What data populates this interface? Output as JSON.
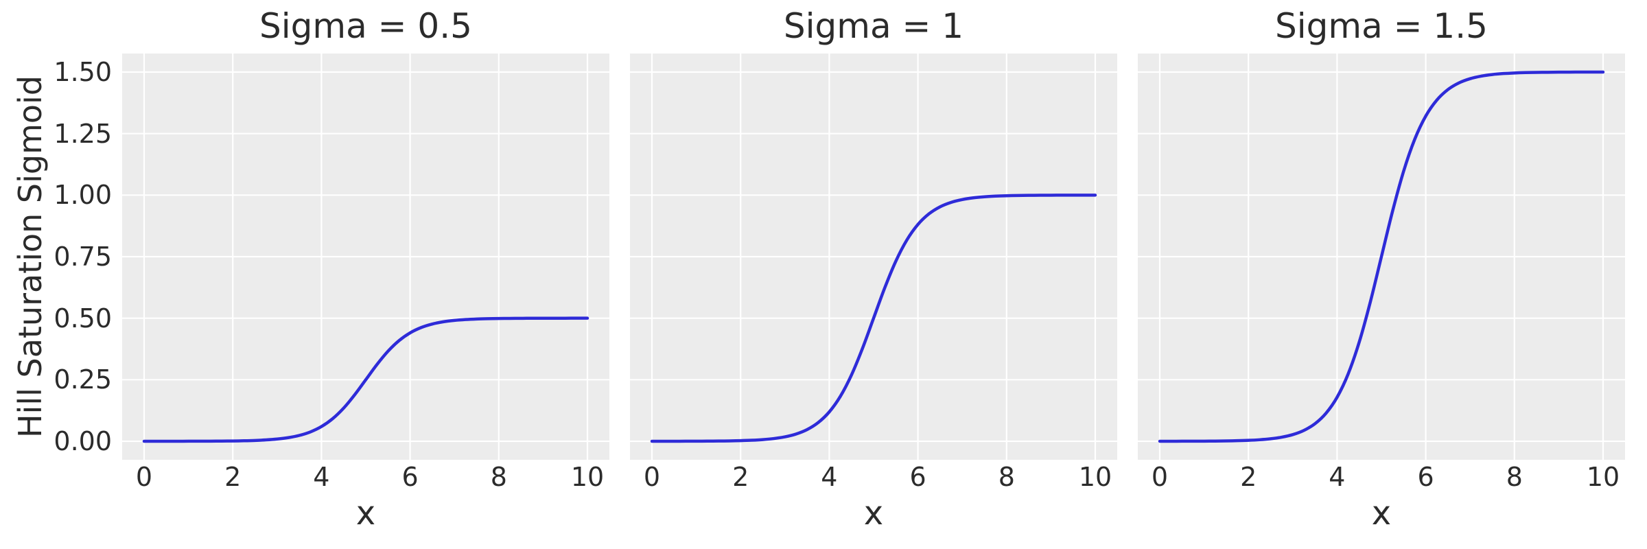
{
  "figure": {
    "background": "#ffffff",
    "axes_background": "#ececec",
    "grid_color": "#ffffff",
    "line_color": "#2e2bd8",
    "text_color": "#2b2b2b"
  },
  "chart_data": {
    "type": "line",
    "layout": "1 row x 3 columns, shared y axis",
    "grid": true,
    "legend": "none",
    "ylabel": "Hill Saturation Sigmoid",
    "xlabel": "x",
    "x_ticks": [
      0,
      2,
      4,
      6,
      8,
      10
    ],
    "y_ticks": [
      "0.00",
      "0.25",
      "0.50",
      "0.75",
      "1.00",
      "1.25",
      "1.50"
    ],
    "xlim": [
      -0.5,
      10.5
    ],
    "ylim": [
      -0.075,
      1.575
    ],
    "x": [
      0,
      0.25,
      0.5,
      0.75,
      1,
      1.25,
      1.5,
      1.75,
      2,
      2.25,
      2.5,
      2.75,
      3,
      3.25,
      3.5,
      3.75,
      4,
      4.25,
      4.5,
      4.75,
      5,
      5.25,
      5.5,
      5.75,
      6,
      6.25,
      6.5,
      6.75,
      7,
      7.25,
      7.5,
      7.75,
      8,
      8.25,
      8.5,
      8.75,
      9,
      9.25,
      9.5,
      9.75,
      10
    ],
    "panels": [
      {
        "title": "Sigma = 0.5",
        "sigma": 0.5,
        "y": [
          0.0,
          0.0,
          0.0001,
          0.0001,
          0.0002,
          0.0003,
          0.0005,
          0.0008,
          0.0012,
          0.002,
          0.0033,
          0.0055,
          0.009,
          0.0147,
          0.0237,
          0.0379,
          0.0596,
          0.0912,
          0.1345,
          0.1888,
          0.25,
          0.3112,
          0.3655,
          0.4088,
          0.4404,
          0.4621,
          0.4763,
          0.4854,
          0.491,
          0.4945,
          0.4967,
          0.498,
          0.4988,
          0.4992,
          0.4995,
          0.4997,
          0.4998,
          0.4999,
          0.4999,
          0.5,
          0.5
        ]
      },
      {
        "title": "Sigma = 1",
        "sigma": 1,
        "y": [
          0.0,
          0.0001,
          0.0001,
          0.0002,
          0.0003,
          0.0006,
          0.0009,
          0.0015,
          0.0025,
          0.0041,
          0.0067,
          0.011,
          0.018,
          0.0293,
          0.0474,
          0.0759,
          0.1192,
          0.1824,
          0.2689,
          0.3775,
          0.5,
          0.6225,
          0.7311,
          0.8176,
          0.8808,
          0.9241,
          0.9526,
          0.9707,
          0.982,
          0.989,
          0.9933,
          0.9959,
          0.9975,
          0.9985,
          0.9991,
          0.9994,
          0.9997,
          0.9998,
          0.9999,
          0.9999,
          1.0
        ]
      },
      {
        "title": "Sigma = 1.5",
        "sigma": 1.5,
        "y": [
          0.0001,
          0.0001,
          0.0002,
          0.0003,
          0.0005,
          0.0008,
          0.0014,
          0.0023,
          0.0037,
          0.0061,
          0.01,
          0.0165,
          0.027,
          0.044,
          0.0711,
          0.1139,
          0.1788,
          0.2736,
          0.4034,
          0.5663,
          0.75,
          0.9338,
          1.0967,
          1.2264,
          1.3212,
          1.3862,
          1.4289,
          1.4561,
          1.473,
          1.4835,
          1.49,
          1.4939,
          1.4963,
          1.4978,
          1.4987,
          1.4991,
          1.4996,
          1.4997,
          1.4999,
          1.4999,
          1.5
        ]
      }
    ]
  }
}
